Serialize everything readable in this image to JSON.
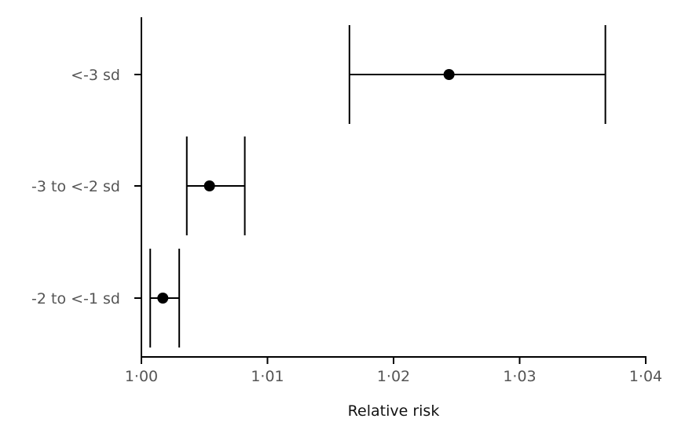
{
  "chart_data": {
    "type": "scatter",
    "subtype": "forest-plot",
    "title": "",
    "xlabel": "Relative risk",
    "ylabel": "",
    "xlim": [
      1.0,
      1.04
    ],
    "xticks": [
      1.0,
      1.01,
      1.02,
      1.03,
      1.04
    ],
    "xtick_labels": [
      "1·00",
      "1·01",
      "1·02",
      "1·03",
      "1·04"
    ],
    "grid": false,
    "legend": "none",
    "categories": [
      "<-3 sd",
      "-3 to <-2 sd",
      "-2 to <-1 sd"
    ],
    "estimates": [
      1.0244,
      1.0054,
      1.0017
    ],
    "lower": [
      1.0165,
      1.0036,
      1.0007
    ],
    "upper": [
      1.0368,
      1.0082,
      1.003
    ],
    "colors": {
      "marks": "#000000",
      "tick_text": "#555555",
      "axis_title": "#111111"
    }
  }
}
